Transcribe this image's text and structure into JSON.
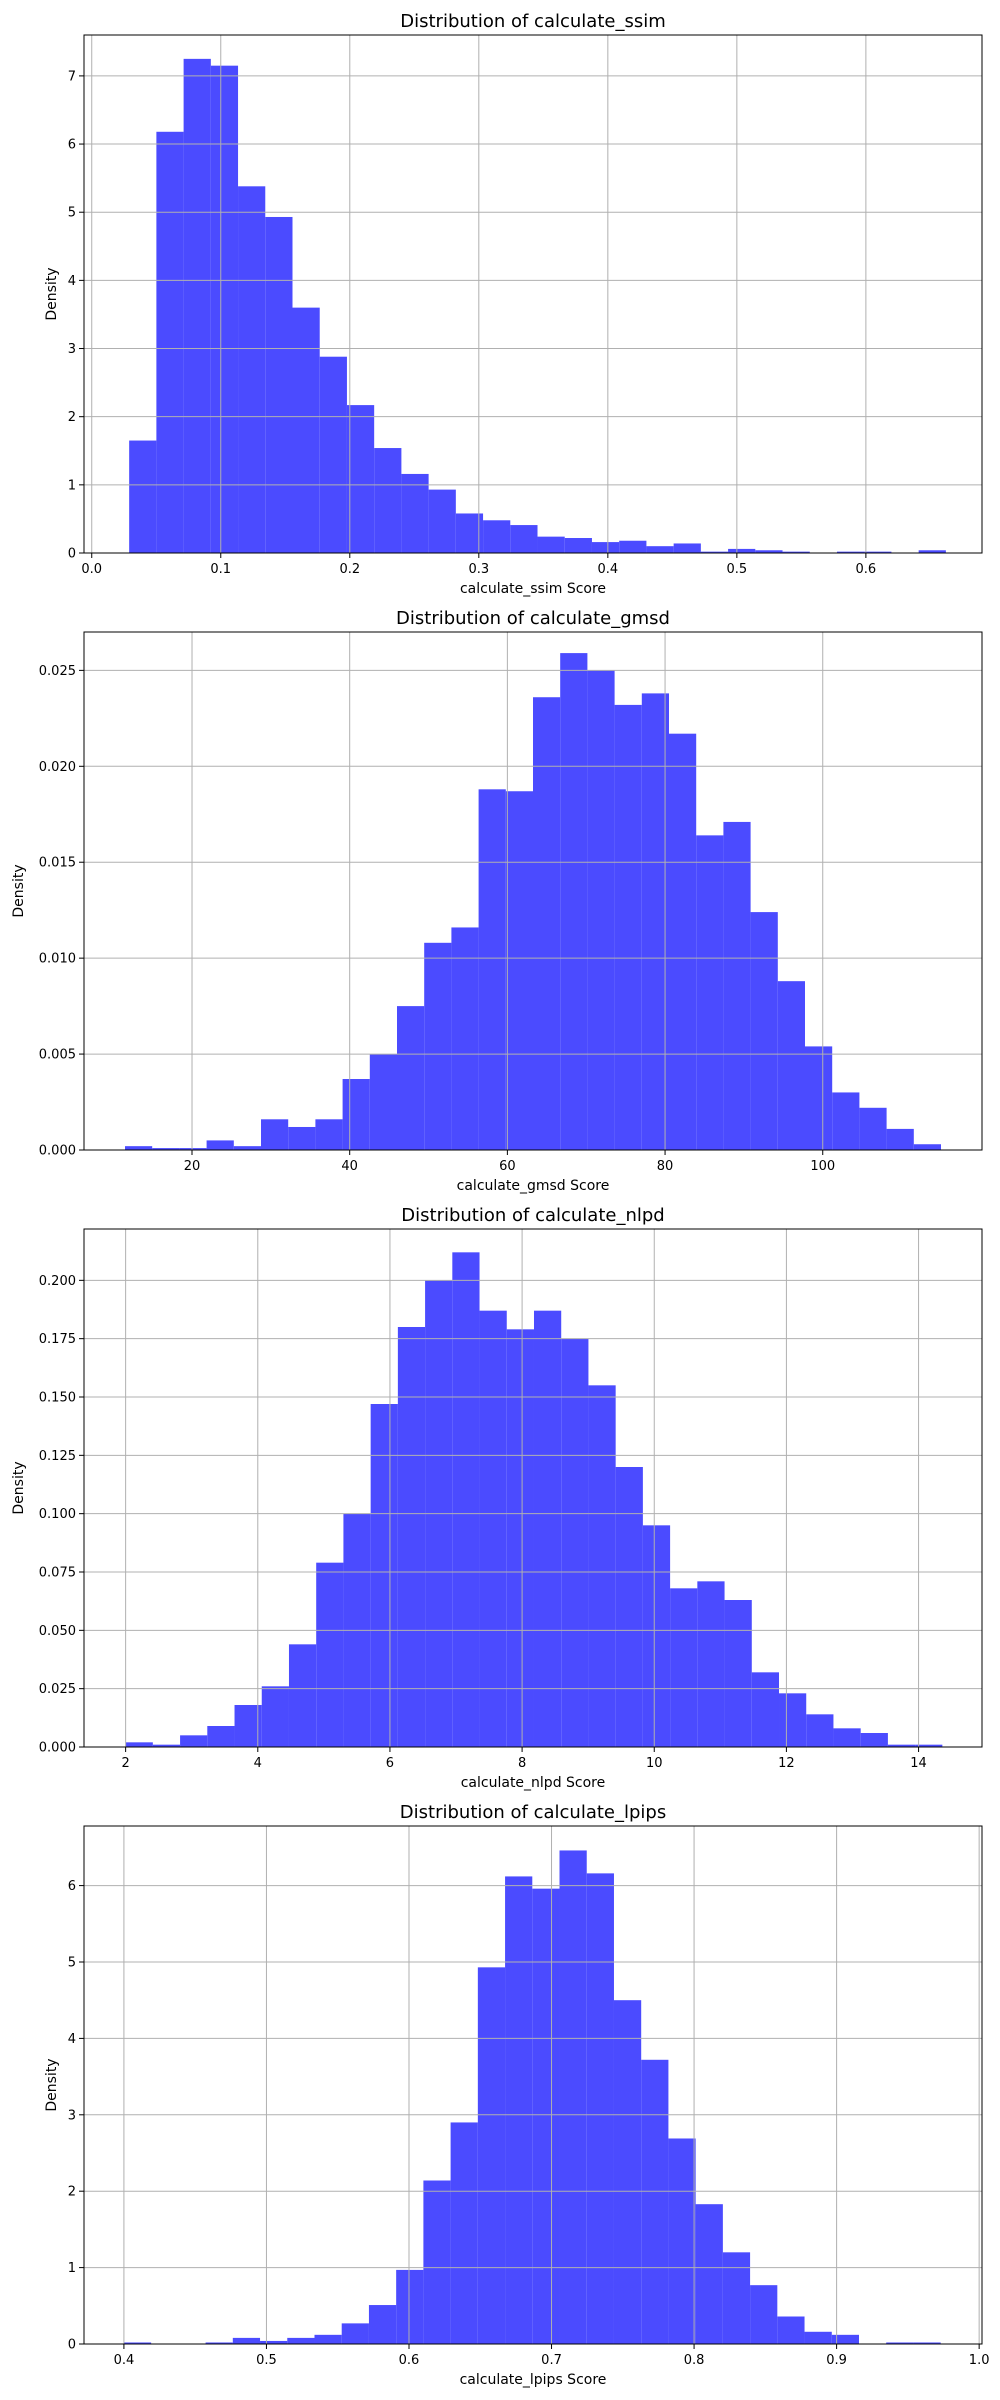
{
  "bar_color": "#4b4bff",
  "chart_data": [
    {
      "type": "bar",
      "title": "Distribution of calculate_ssim",
      "xlabel": "calculate_ssim Score",
      "ylabel": "Density",
      "xlim": [
        -0.006,
        0.69
      ],
      "ylim": [
        0,
        7.6
      ],
      "xticks": [
        0.0,
        0.1,
        0.2,
        0.3,
        0.4,
        0.5,
        0.6
      ],
      "xtick_labels": [
        "0.0",
        "0.1",
        "0.2",
        "0.3",
        "0.4",
        "0.5",
        "0.6"
      ],
      "yticks": [
        0,
        1,
        2,
        3,
        4,
        5,
        6,
        7
      ],
      "ytick_labels": [
        "0",
        "1",
        "2",
        "3",
        "4",
        "5",
        "6",
        "7"
      ],
      "grid": true,
      "bin_start": 0.029,
      "bin_width": 0.0211,
      "values": [
        1.65,
        6.18,
        7.25,
        7.15,
        5.38,
        4.93,
        3.6,
        2.88,
        2.17,
        1.54,
        1.16,
        0.93,
        0.58,
        0.48,
        0.41,
        0.24,
        0.22,
        0.16,
        0.18,
        0.1,
        0.14,
        0.02,
        0.06,
        0.04,
        0.02,
        0.0,
        0.02,
        0.02,
        0.0,
        0.04
      ]
    },
    {
      "type": "bar",
      "title": "Distribution of calculate_gmsd",
      "xlabel": "calculate_gmsd Score",
      "ylabel": "Density",
      "xlim": [
        6.3,
        120.2
      ],
      "ylim": [
        0,
        0.027
      ],
      "xticks": [
        20,
        40,
        60,
        80,
        100
      ],
      "xtick_labels": [
        "20",
        "40",
        "60",
        "80",
        "100"
      ],
      "yticks": [
        0,
        0.005,
        0.01,
        0.015,
        0.02,
        0.025
      ],
      "ytick_labels": [
        "0.000",
        "0.005",
        "0.010",
        "0.015",
        "0.020",
        "0.025"
      ],
      "grid": true,
      "bin_start": 11.5,
      "bin_width": 3.45,
      "values": [
        0.0002,
        0.0001,
        0.0001,
        0.0005,
        0.0002,
        0.0016,
        0.0012,
        0.0016,
        0.0037,
        0.005,
        0.0075,
        0.0108,
        0.0116,
        0.0188,
        0.0187,
        0.0236,
        0.0259,
        0.025,
        0.0232,
        0.0238,
        0.0217,
        0.0164,
        0.0171,
        0.0124,
        0.0088,
        0.0054,
        0.003,
        0.0022,
        0.0011,
        0.0003
      ]
    },
    {
      "type": "bar",
      "title": "Distribution of calculate_nlpd",
      "xlabel": "calculate_nlpd Score",
      "ylabel": "Density",
      "xlim": [
        1.37,
        14.96
      ],
      "ylim": [
        0,
        0.222
      ],
      "xticks": [
        2,
        4,
        6,
        8,
        10,
        12,
        14
      ],
      "xtick_labels": [
        "2",
        "4",
        "6",
        "8",
        "10",
        "12",
        "14"
      ],
      "yticks": [
        0,
        0.025,
        0.05,
        0.075,
        0.1,
        0.125,
        0.15,
        0.175,
        0.2
      ],
      "ytick_labels": [
        "0.000",
        "0.025",
        "0.050",
        "0.075",
        "0.100",
        "0.125",
        "0.150",
        "0.175",
        "0.200"
      ],
      "grid": true,
      "bin_start": 2.0,
      "bin_width": 0.412,
      "values": [
        0.002,
        0.001,
        0.005,
        0.009,
        0.018,
        0.026,
        0.044,
        0.079,
        0.1,
        0.147,
        0.18,
        0.2,
        0.212,
        0.187,
        0.179,
        0.187,
        0.175,
        0.155,
        0.12,
        0.095,
        0.068,
        0.071,
        0.063,
        0.032,
        0.023,
        0.014,
        0.008,
        0.006,
        0.001,
        0.001
      ]
    },
    {
      "type": "bar",
      "title": "Distribution of calculate_lpips",
      "xlabel": "calculate_lpips Score",
      "ylabel": "Density",
      "xlim": [
        0.372,
        1.002
      ],
      "ylim": [
        0,
        6.78
      ],
      "xticks": [
        0.4,
        0.5,
        0.6,
        0.7,
        0.8,
        0.9,
        1.0
      ],
      "xtick_labels": [
        "0.4",
        "0.5",
        "0.6",
        "0.7",
        "0.8",
        "0.9",
        "1.0"
      ],
      "yticks": [
        0,
        1,
        2,
        3,
        4,
        5,
        6
      ],
      "ytick_labels": [
        "0",
        "1",
        "2",
        "3",
        "4",
        "5",
        "6"
      ],
      "grid": true,
      "bin_start": 0.4,
      "bin_width": 0.0191,
      "values": [
        0.02,
        0.0,
        0.0,
        0.02,
        0.08,
        0.04,
        0.08,
        0.12,
        0.27,
        0.51,
        0.97,
        2.14,
        2.9,
        4.93,
        6.12,
        5.96,
        6.46,
        6.16,
        4.5,
        3.72,
        2.69,
        1.83,
        1.2,
        0.77,
        0.36,
        0.16,
        0.12,
        0.0,
        0.02,
        0.02
      ]
    }
  ]
}
